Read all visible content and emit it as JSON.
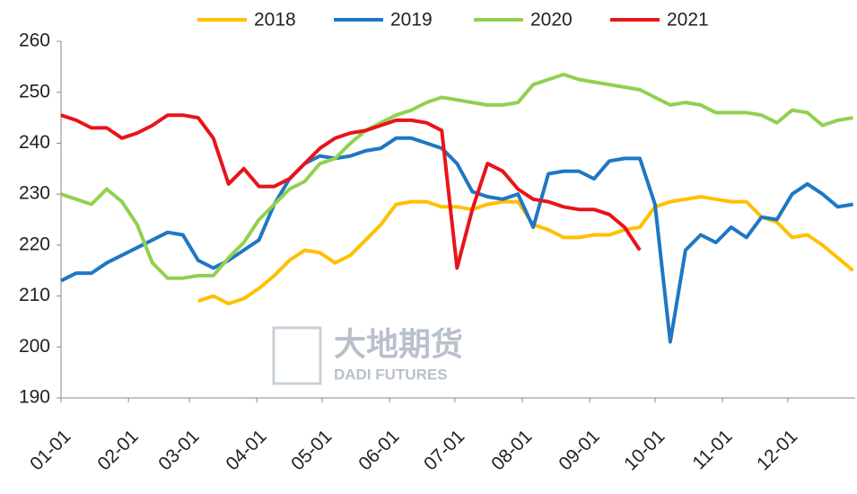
{
  "chart_data": {
    "type": "line",
    "watermark": {
      "cn": "大地期货",
      "en": "DADI FUTURES"
    },
    "x": [
      1,
      8,
      15,
      22,
      29,
      36,
      43,
      50,
      57,
      64,
      71,
      78,
      85,
      92,
      99,
      106,
      113,
      120,
      127,
      134,
      141,
      148,
      155,
      162,
      169,
      176,
      183,
      190,
      197,
      204,
      211,
      218,
      225,
      232,
      239,
      246,
      253,
      260,
      267,
      274,
      281,
      288,
      295,
      302,
      309,
      316,
      323,
      330,
      337,
      344,
      351,
      358,
      365
    ],
    "xlim": [
      1,
      366
    ],
    "xticks": [
      {
        "value": 1,
        "label": "01-01"
      },
      {
        "value": 32,
        "label": "02-01"
      },
      {
        "value": 60,
        "label": "03-01"
      },
      {
        "value": 91,
        "label": "04-01"
      },
      {
        "value": 121,
        "label": "05-01"
      },
      {
        "value": 152,
        "label": "06-01"
      },
      {
        "value": 182,
        "label": "07-01"
      },
      {
        "value": 213,
        "label": "08-01"
      },
      {
        "value": 244,
        "label": "09-01"
      },
      {
        "value": 274,
        "label": "10-01"
      },
      {
        "value": 305,
        "label": "11-01"
      },
      {
        "value": 335,
        "label": "12-01"
      }
    ],
    "ylim": [
      190,
      260
    ],
    "yticks": [
      190,
      200,
      210,
      220,
      230,
      240,
      250,
      260
    ],
    "legend": "top",
    "series": [
      {
        "name": "2018",
        "color": "#ffc000",
        "values": [
          null,
          null,
          null,
          null,
          null,
          null,
          null,
          null,
          null,
          209,
          210,
          208.5,
          209.5,
          211.5,
          214,
          217,
          219,
          218.5,
          216.5,
          218,
          221,
          224,
          228,
          228.5,
          228.5,
          227.5,
          227.5,
          227,
          228,
          228.5,
          228.5,
          224,
          223,
          221.5,
          221.5,
          222,
          222,
          223,
          223.5,
          227.5,
          228.5,
          229,
          229.5,
          229,
          228.5,
          228.5,
          225.5,
          224.5,
          221.5,
          222,
          220,
          217.5,
          215
        ]
      },
      {
        "name": "2019",
        "color": "#1f77c4",
        "values": [
          213,
          214.5,
          214.5,
          216.5,
          218,
          219.5,
          221,
          222.5,
          222,
          217,
          215.5,
          217,
          219,
          221,
          228,
          233,
          236,
          237.5,
          237,
          237.5,
          238.5,
          239,
          241,
          241,
          240,
          239,
          236,
          230.5,
          229.5,
          229,
          230,
          223.5,
          234,
          234.5,
          234.5,
          233,
          236.5,
          237,
          237,
          228,
          201,
          219,
          222,
          220.5,
          223.5,
          221.5,
          225.5,
          225,
          230,
          232,
          230,
          227.5,
          228
        ]
      },
      {
        "name": "2020",
        "color": "#92d050",
        "values": [
          230,
          229,
          228,
          231,
          228.5,
          224,
          216.5,
          213.5,
          213.5,
          214,
          214,
          217.5,
          220.5,
          225,
          228,
          231,
          232.5,
          236,
          237,
          240,
          242.5,
          244,
          245.5,
          246.5,
          248,
          249,
          248.5,
          248,
          247.5,
          247.5,
          248,
          251.5,
          252.5,
          253.5,
          252.5,
          252,
          251.5,
          251,
          250.5,
          249,
          247.5,
          248,
          247.5,
          246,
          246,
          246,
          245.5,
          244,
          246.5,
          246,
          243.5,
          244.5,
          245
        ]
      },
      {
        "name": "2021",
        "color": "#e8141b",
        "values": [
          245.5,
          244.5,
          243,
          243,
          241,
          242,
          243.5,
          245.5,
          245.5,
          245,
          241,
          232,
          235,
          231.5,
          231.5,
          233,
          236,
          239,
          241,
          242,
          242.5,
          243.5,
          244.5,
          244.5,
          244,
          242.5,
          215.5,
          227,
          236,
          234.5,
          231,
          229,
          228.5,
          227.5,
          227,
          227,
          226,
          223.5,
          219,
          null,
          null,
          null,
          null,
          null,
          null,
          null,
          null,
          null,
          null,
          null,
          null,
          null,
          null
        ]
      }
    ]
  }
}
